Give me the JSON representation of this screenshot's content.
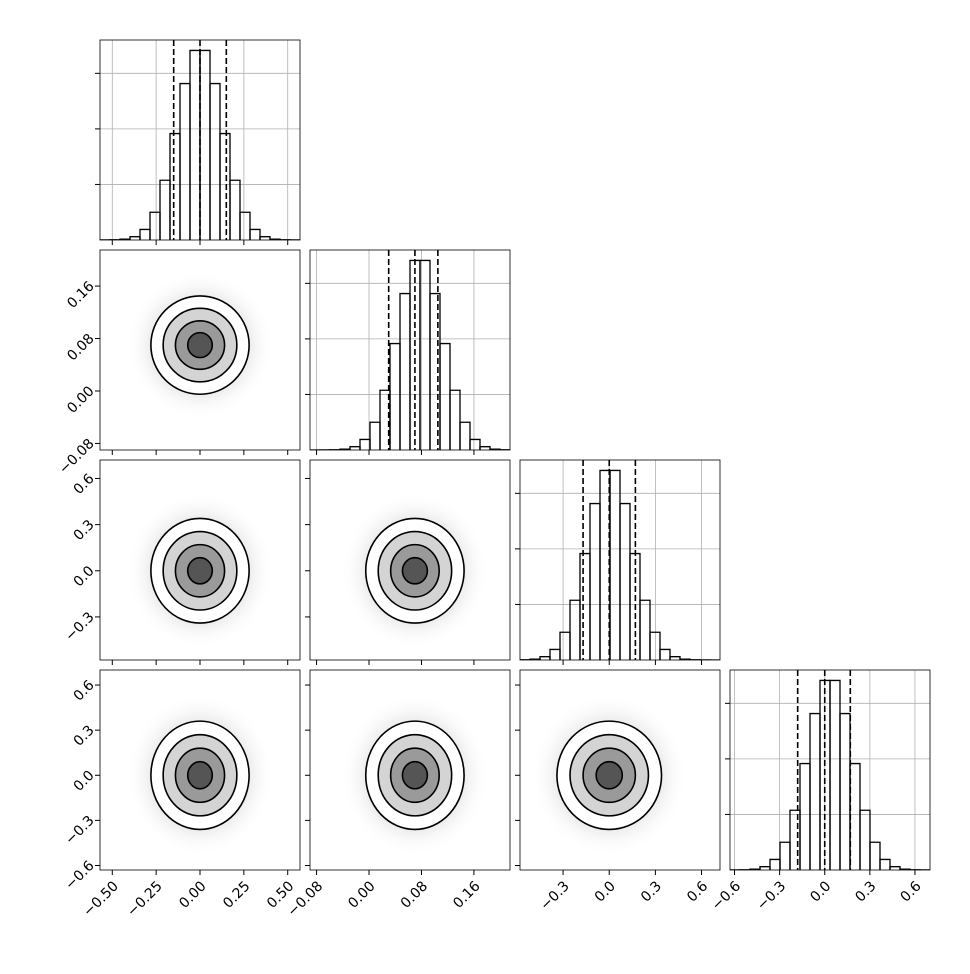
{
  "chart_data": {
    "type": "corner",
    "color": "#000000",
    "grid": true,
    "variables": [
      {
        "xlim": [
          -0.57,
          0.57
        ],
        "xticks": [
          {
            "value": -0.5,
            "label": "−0.50"
          },
          {
            "value": -0.25,
            "label": "−0.25"
          },
          {
            "value": 0,
            "label": "0.00"
          },
          0.25,
          {
            "value": 0.5,
            "label": "0.50"
          }
        ],
        "bins": [
          -0.57,
          -0.513,
          -0.456,
          -0.399,
          -0.342,
          -0.285,
          -0.228,
          -0.171,
          -0.114,
          -0.057,
          0.0,
          0.057,
          0.114,
          0.171,
          0.228,
          0.285,
          0.342,
          0.399,
          0.456,
          0.513,
          0.57
        ],
        "counts": [
          1,
          2,
          8,
          30,
          95,
          250,
          538,
          958,
          1408,
          1706,
          1706,
          1408,
          958,
          538,
          250,
          95,
          30,
          8,
          2,
          1
        ],
        "quantiles": [
          -0.15,
          0.0,
          0.15
        ],
        "ylim": [
          0,
          1800
        ],
        "yticks": [
          500,
          1000,
          1500
        ]
      },
      {
        "xlim": [
          -0.09,
          0.215
        ],
        "xticks": [
          {
            "value": -0.08,
            "label": "−0.08"
          },
          {
            "value": 0,
            "label": "0.00"
          },
          0.08,
          0.16
        ],
        "bins": [
          -0.09,
          -0.07475,
          -0.0595,
          -0.04425,
          -0.029,
          -0.01375,
          0.0015,
          0.01675,
          0.032,
          0.04725,
          0.0625,
          0.07775,
          0.093,
          0.10825,
          0.1235,
          0.13875,
          0.154,
          0.16925,
          0.1845,
          0.19975,
          0.215
        ],
        "counts": [
          0,
          1,
          2,
          8,
          30,
          95,
          250,
          538,
          958,
          1408,
          1706,
          1706,
          1408,
          958,
          538,
          250,
          95,
          30,
          8,
          2
        ],
        "quantiles": [
          0.03,
          0.07,
          0.105
        ],
        "ylim": [
          0,
          1800
        ],
        "yticks": [
          500,
          1000,
          1500
        ]
      },
      {
        "xlim": [
          -0.58,
          0.72
        ],
        "xticks": [
          {
            "value": -0.3,
            "label": "−0.3"
          },
          {
            "value": 0,
            "label": "0.0"
          },
          0.3,
          0.6
        ],
        "bins": [
          -0.58,
          -0.515,
          -0.45,
          -0.385,
          -0.32,
          -0.255,
          -0.19,
          -0.125,
          -0.06,
          0.005,
          0.07,
          0.135,
          0.2,
          0.265,
          0.33,
          0.395,
          0.46,
          0.525,
          0.59,
          0.655,
          0.72
        ],
        "counts": [
          2,
          8,
          30,
          95,
          250,
          538,
          958,
          1408,
          1706,
          1706,
          1408,
          958,
          538,
          250,
          95,
          30,
          8,
          2,
          1,
          0
        ],
        "quantiles": [
          -0.17,
          0.0,
          0.17
        ],
        "ylim": [
          0,
          1800
        ],
        "yticks": [
          500,
          1000,
          1500
        ]
      },
      {
        "xlim": [
          -0.63,
          0.7
        ],
        "xticks": [
          {
            "value": -0.6,
            "label": "−0.6"
          },
          {
            "value": -0.3,
            "label": "−0.3"
          },
          {
            "value": 0,
            "label": "0.0"
          },
          0.3,
          0.6
        ],
        "bins": [
          -0.63,
          -0.5635,
          -0.497,
          -0.4305,
          -0.364,
          -0.2975,
          -0.231,
          -0.1645,
          -0.098,
          -0.0315,
          0.035,
          0.1015,
          0.168,
          0.2345,
          0.301,
          0.3675,
          0.434,
          0.5005,
          0.567,
          0.6335,
          0.7
        ],
        "counts": [
          1,
          2,
          8,
          30,
          95,
          250,
          538,
          958,
          1408,
          1706,
          1706,
          1408,
          958,
          538,
          250,
          95,
          30,
          8,
          2,
          1
        ],
        "quantiles": [
          -0.18,
          0.0,
          0.17
        ],
        "ylim": [
          0,
          1800
        ],
        "yticks": [
          500,
          1000,
          1500
        ]
      }
    ],
    "pairs": [
      {
        "center": [
          0.0,
          0.07
        ],
        "contours": [
          [
            0.07,
            0.019
          ],
          [
            0.14,
            0.037
          ],
          [
            0.21,
            0.056
          ],
          [
            0.28,
            0.075
          ]
        ]
      },
      {
        "center": [
          0.0,
          0.0
        ],
        "contours": [
          [
            0.07,
            0.085
          ],
          [
            0.14,
            0.17
          ],
          [
            0.21,
            0.255
          ],
          [
            0.28,
            0.34
          ]
        ]
      },
      {
        "center": [
          0.07,
          0.0
        ],
        "contours": [
          [
            0.019,
            0.085
          ],
          [
            0.037,
            0.17
          ],
          [
            0.056,
            0.255
          ],
          [
            0.075,
            0.34
          ]
        ]
      },
      {
        "center": [
          0.0,
          0.0
        ],
        "contours": [
          [
            0.07,
            0.09
          ],
          [
            0.14,
            0.18
          ],
          [
            0.21,
            0.27
          ],
          [
            0.28,
            0.36
          ]
        ]
      },
      {
        "center": [
          0.07,
          0.0
        ],
        "contours": [
          [
            0.019,
            0.09
          ],
          [
            0.037,
            0.18
          ],
          [
            0.056,
            0.27
          ],
          [
            0.075,
            0.36
          ]
        ]
      },
      {
        "center": [
          0.0,
          0.0
        ],
        "contours": [
          [
            0.085,
            0.09
          ],
          [
            0.17,
            0.18
          ],
          [
            0.255,
            0.27
          ],
          [
            0.34,
            0.36
          ]
        ]
      }
    ]
  }
}
